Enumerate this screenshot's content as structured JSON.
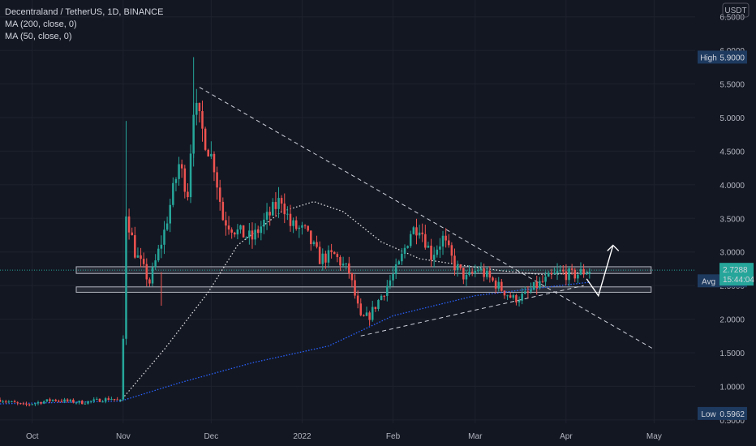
{
  "legend": {
    "symbol": "Decentraland / TetherUS, 1D, BINANCE",
    "ma200": "MA (200, close, 0)",
    "ma50": "MA (50, close, 0)"
  },
  "currency_badge": "USDT",
  "colors": {
    "background": "#131722",
    "up": "#26a69a",
    "down": "#ef5350",
    "ma200": "#2962ff",
    "ma50": "#ffffff",
    "price_tag": "#26a69a",
    "label_tag": "#1e3a5f"
  },
  "chart_data": {
    "type": "candlestick",
    "y_ticks": [
      "6.5000",
      "6.0000",
      "5.5000",
      "5.0000",
      "4.5000",
      "4.0000",
      "3.5000",
      "3.0000",
      "2.5000",
      "2.0000",
      "1.5000",
      "1.0000",
      "0.5000"
    ],
    "x_ticks": [
      "Oct",
      "Nov",
      "Dec",
      "2022",
      "Feb",
      "Mar",
      "Apr",
      "May"
    ],
    "ylim": [
      0.45,
      6.75
    ],
    "xlim": [
      "2021-09-20",
      "2022-05-15"
    ],
    "markers": {
      "high": {
        "label": "High",
        "value": "5.9000"
      },
      "avg": {
        "label": "Avg",
        "value": "2.5705"
      },
      "low": {
        "label": "Low",
        "value": "0.5962"
      },
      "last": {
        "value": "2.7288",
        "countdown": "15:44:04"
      }
    },
    "zones": [
      {
        "from": 2.68,
        "to": 2.78,
        "x_start": "2021-10-16",
        "x_end": "2022-04-30"
      },
      {
        "from": 2.4,
        "to": 2.48,
        "x_start": "2021-10-16",
        "x_end": "2022-04-30"
      }
    ],
    "trendlines": [
      {
        "from": {
          "date": "2021-11-27",
          "price": 5.45
        },
        "to": {
          "date": "2022-05-01",
          "price": 1.55
        }
      },
      {
        "from": {
          "date": "2022-01-21",
          "price": 1.75
        },
        "to": {
          "date": "2022-04-07",
          "price": 2.5
        }
      }
    ],
    "projection_arrow": [
      {
        "date": "2022-04-08",
        "price": 2.6
      },
      {
        "date": "2022-04-12",
        "price": 2.35
      },
      {
        "date": "2022-04-17",
        "price": 3.1
      }
    ],
    "ma200_points": [
      {
        "date": "2021-09-20",
        "price": 0.74
      },
      {
        "date": "2021-10-31",
        "price": 0.78
      },
      {
        "date": "2021-11-20",
        "price": 1.05
      },
      {
        "date": "2021-12-15",
        "price": 1.35
      },
      {
        "date": "2022-01-10",
        "price": 1.6
      },
      {
        "date": "2022-02-01",
        "price": 2.05
      },
      {
        "date": "2022-03-01",
        "price": 2.35
      },
      {
        "date": "2022-03-20",
        "price": 2.45
      },
      {
        "date": "2022-04-09",
        "price": 2.55
      }
    ],
    "ma50_points": [
      {
        "date": "2021-10-31",
        "price": 0.78
      },
      {
        "date": "2021-11-15",
        "price": 1.55
      },
      {
        "date": "2021-11-30",
        "price": 2.4
      },
      {
        "date": "2021-12-10",
        "price": 3.1
      },
      {
        "date": "2021-12-25",
        "price": 3.6
      },
      {
        "date": "2022-01-05",
        "price": 3.75
      },
      {
        "date": "2022-01-15",
        "price": 3.6
      },
      {
        "date": "2022-01-28",
        "price": 3.15
      },
      {
        "date": "2022-02-10",
        "price": 2.9
      },
      {
        "date": "2022-02-25",
        "price": 2.8
      },
      {
        "date": "2022-03-10",
        "price": 2.72
      },
      {
        "date": "2022-03-25",
        "price": 2.66
      },
      {
        "date": "2022-04-09",
        "price": 2.7
      }
    ],
    "price_path": [
      {
        "date": "2021-09-20",
        "price": 0.8
      },
      {
        "date": "2021-09-28",
        "price": 0.72
      },
      {
        "date": "2021-10-08",
        "price": 0.8
      },
      {
        "date": "2021-10-18",
        "price": 0.76
      },
      {
        "date": "2021-10-28",
        "price": 0.82
      },
      {
        "date": "2021-10-31",
        "price": 0.78
      },
      {
        "date": "2021-11-01",
        "price": 1.7
      },
      {
        "date": "2021-11-02",
        "price": 3.6
      },
      {
        "date": "2021-11-05",
        "price": 3.0
      },
      {
        "date": "2021-11-10",
        "price": 2.55
      },
      {
        "date": "2021-11-15",
        "price": 3.3
      },
      {
        "date": "2021-11-20",
        "price": 4.3
      },
      {
        "date": "2021-11-23",
        "price": 3.9
      },
      {
        "date": "2021-11-25",
        "price": 5.2
      },
      {
        "date": "2021-11-28",
        "price": 4.8
      },
      {
        "date": "2021-12-02",
        "price": 4.3
      },
      {
        "date": "2021-12-05",
        "price": 3.5
      },
      {
        "date": "2021-12-10",
        "price": 3.3
      },
      {
        "date": "2021-12-15",
        "price": 3.2
      },
      {
        "date": "2021-12-20",
        "price": 3.5
      },
      {
        "date": "2021-12-25",
        "price": 3.8
      },
      {
        "date": "2021-12-28",
        "price": 3.4
      },
      {
        "date": "2022-01-02",
        "price": 3.3
      },
      {
        "date": "2022-01-07",
        "price": 2.9
      },
      {
        "date": "2022-01-12",
        "price": 2.95
      },
      {
        "date": "2022-01-17",
        "price": 2.7
      },
      {
        "date": "2022-01-21",
        "price": 2.0
      },
      {
        "date": "2022-01-24",
        "price": 2.05
      },
      {
        "date": "2022-01-28",
        "price": 2.35
      },
      {
        "date": "2022-02-03",
        "price": 2.8
      },
      {
        "date": "2022-02-07",
        "price": 3.3
      },
      {
        "date": "2022-02-10",
        "price": 3.4
      },
      {
        "date": "2022-02-14",
        "price": 2.95
      },
      {
        "date": "2022-02-18",
        "price": 3.2
      },
      {
        "date": "2022-02-22",
        "price": 2.8
      },
      {
        "date": "2022-02-26",
        "price": 2.6
      },
      {
        "date": "2022-03-02",
        "price": 2.75
      },
      {
        "date": "2022-03-06",
        "price": 2.6
      },
      {
        "date": "2022-03-10",
        "price": 2.45
      },
      {
        "date": "2022-03-14",
        "price": 2.3
      },
      {
        "date": "2022-03-18",
        "price": 2.35
      },
      {
        "date": "2022-03-22",
        "price": 2.5
      },
      {
        "date": "2022-03-26",
        "price": 2.6
      },
      {
        "date": "2022-03-30",
        "price": 2.7
      },
      {
        "date": "2022-04-03",
        "price": 2.65
      },
      {
        "date": "2022-04-09",
        "price": 2.73
      }
    ]
  }
}
